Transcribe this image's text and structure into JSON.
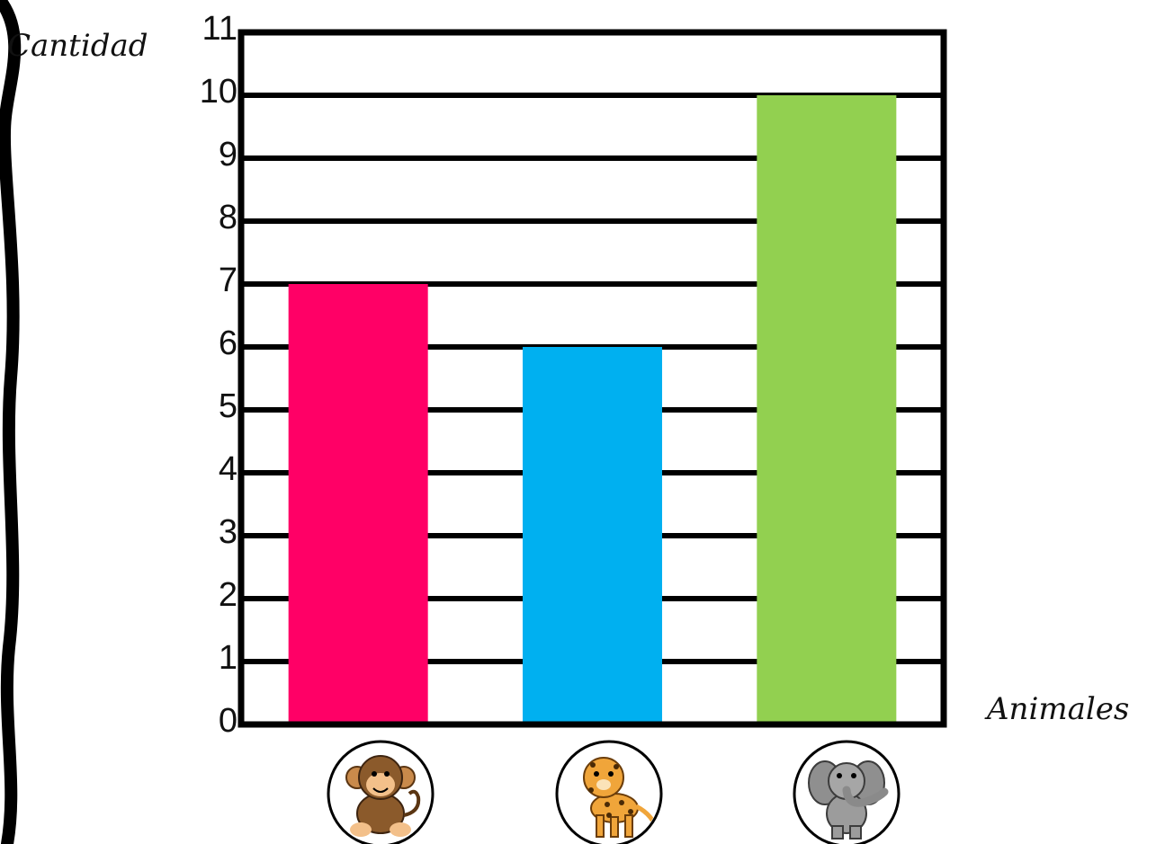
{
  "chart_data": {
    "type": "bar",
    "categories": [
      "mono",
      "leopardo",
      "elefante"
    ],
    "category_icons": [
      "monkey-icon",
      "leopard-icon",
      "elephant-icon"
    ],
    "values": [
      7,
      6,
      10
    ],
    "colors": [
      "#ff0066",
      "#00b0f0",
      "#92d050"
    ],
    "ylabel": "Cantidad",
    "xlabel": "Animales",
    "ylim": [
      0,
      11
    ],
    "yticks": [
      "0",
      "1",
      "2",
      "3",
      "4",
      "5",
      "6",
      "7",
      "8",
      "9",
      "10",
      "11"
    ],
    "grid": true
  }
}
